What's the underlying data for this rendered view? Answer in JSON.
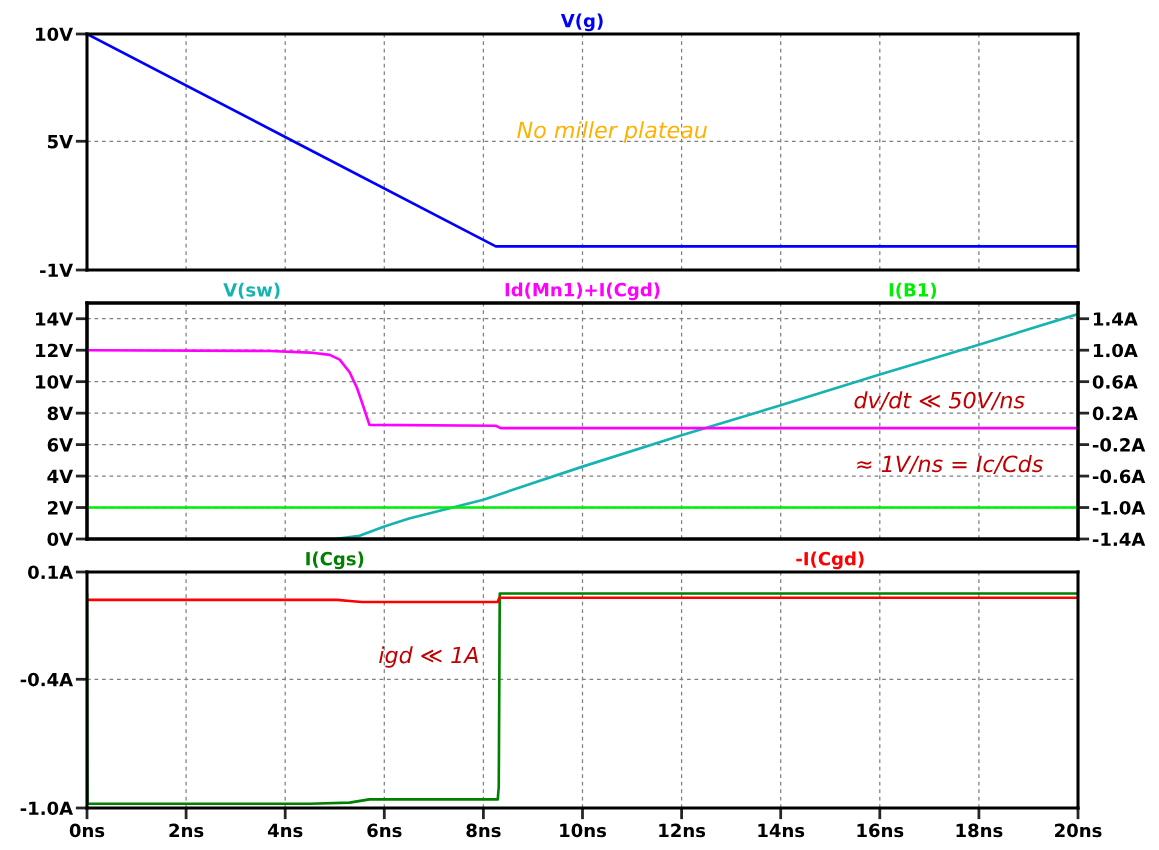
{
  "chart_data": [
    {
      "type": "line",
      "legend": "top",
      "grid": true,
      "tick_labels": "y",
      "series": [
        {
          "name": "V(g)",
          "color": "#0000ff",
          "x": [
            0,
            4,
            8.25,
            20
          ],
          "values": [
            10,
            5.2,
            0.1,
            0.1
          ]
        }
      ],
      "xlim": [
        0,
        20
      ],
      "xticks": [
        {
          "value": 0,
          "label": null
        },
        {
          "value": 2,
          "label": null
        },
        {
          "value": 4,
          "label": null
        },
        {
          "value": 6,
          "label": null
        },
        {
          "value": 8,
          "label": null
        },
        {
          "value": 10,
          "label": null
        },
        {
          "value": 12,
          "label": null
        },
        {
          "value": 14,
          "label": null
        },
        {
          "value": 16,
          "label": null
        },
        {
          "value": 18,
          "label": null
        },
        {
          "value": 20,
          "label": null
        }
      ],
      "ylim": [
        -1,
        10
      ],
      "yticks": [
        {
          "value": 10,
          "label": "10V"
        },
        {
          "value": 5,
          "label": "5V"
        },
        {
          "value": -1,
          "label": "-1V"
        }
      ],
      "annotations": [
        "No miller plateau"
      ]
    },
    {
      "type": "line",
      "legend": "top",
      "grid": true,
      "tick_labels": "y",
      "series": [
        {
          "name": "V(sw)",
          "color": "#17b3b3",
          "x": [
            0,
            5.0,
            5.5,
            6.0,
            6.5,
            7.0,
            7.5,
            8.0,
            10,
            12,
            14,
            16,
            18,
            20
          ],
          "values": [
            0,
            0,
            0.2,
            0.8,
            1.3,
            1.7,
            2.1,
            2.5,
            4.6,
            6.6,
            8.5,
            10.45,
            12.35,
            14.3
          ]
        },
        {
          "name": "Id(Mn1)+I(Cgd)",
          "color": "#ff00ff",
          "axis": "y2",
          "x": [
            0,
            3.7,
            4.5,
            4.9,
            5.1,
            5.3,
            5.45,
            5.58,
            5.7,
            8.25,
            8.35,
            20
          ],
          "values": [
            1.0,
            0.99,
            0.97,
            0.94,
            0.88,
            0.72,
            0.52,
            0.28,
            0.05,
            0.04,
            0.01,
            0.01
          ]
        },
        {
          "name": "I(B1)",
          "color": "#00ee00",
          "axis": "y2",
          "x": [
            0,
            20
          ],
          "values": [
            -1.0,
            -1.0
          ]
        }
      ],
      "xlim": [
        0,
        20
      ],
      "xticks": [
        {
          "value": 0,
          "label": null
        },
        {
          "value": 2,
          "label": null
        },
        {
          "value": 4,
          "label": null
        },
        {
          "value": 6,
          "label": null
        },
        {
          "value": 8,
          "label": null
        },
        {
          "value": 10,
          "label": null
        },
        {
          "value": 12,
          "label": null
        },
        {
          "value": 14,
          "label": null
        },
        {
          "value": 16,
          "label": null
        },
        {
          "value": 18,
          "label": null
        },
        {
          "value": 20,
          "label": null
        }
      ],
      "ylim": [
        0,
        15
      ],
      "yticks": [
        {
          "value": 0,
          "label": "0V"
        },
        {
          "value": 2,
          "label": "2V"
        },
        {
          "value": 4,
          "label": "4V"
        },
        {
          "value": 6,
          "label": "6V"
        },
        {
          "value": 8,
          "label": "8V"
        },
        {
          "value": 10,
          "label": "10V"
        },
        {
          "value": 12,
          "label": "12V"
        },
        {
          "value": 14,
          "label": "14V"
        }
      ],
      "y2lim": [
        -1.4,
        1.6
      ],
      "y2ticks": [
        {
          "value": -1.4,
          "label": "-1.4A"
        },
        {
          "value": -1.0,
          "label": "-1.0A"
        },
        {
          "value": -0.6,
          "label": "-0.6A"
        },
        {
          "value": -0.2,
          "label": "-0.2A"
        },
        {
          "value": 0.2,
          "label": "0.2A"
        },
        {
          "value": 0.6,
          "label": "0.6A"
        },
        {
          "value": 1.0,
          "label": "1.0A"
        },
        {
          "value": 1.4,
          "label": "1.4A"
        }
      ],
      "annotations": [
        "dv/dt ≪ 50V/ns",
        "≈ 1V/ns = Ic/Cds"
      ]
    },
    {
      "type": "line",
      "legend": "top",
      "grid": true,
      "series": [
        {
          "name": "I(Cgs)",
          "color": "#008000",
          "x": [
            0,
            0.01,
            4.5,
            5.3,
            5.7,
            8.29,
            8.31,
            8.33,
            20
          ],
          "values": [
            0.0,
            -0.98,
            -0.98,
            -0.975,
            -0.96,
            -0.96,
            -0.9,
            0.0,
            0.0
          ]
        },
        {
          "name": "-I(Cgd)",
          "color": "#ff0000",
          "x": [
            0,
            5.05,
            5.3,
            5.55,
            8.29,
            8.32,
            20
          ],
          "values": [
            -0.03,
            -0.03,
            -0.035,
            -0.04,
            -0.04,
            -0.02,
            -0.02
          ]
        }
      ],
      "xlim": [
        0,
        20
      ],
      "xticks": [
        {
          "value": 0,
          "label": "0ns"
        },
        {
          "value": 2,
          "label": "2ns"
        },
        {
          "value": 4,
          "label": "4ns"
        },
        {
          "value": 6,
          "label": "6ns"
        },
        {
          "value": 8,
          "label": "8ns"
        },
        {
          "value": 10,
          "label": "10ns"
        },
        {
          "value": 12,
          "label": "12ns"
        },
        {
          "value": 14,
          "label": "14ns"
        },
        {
          "value": 16,
          "label": "16ns"
        },
        {
          "value": 18,
          "label": "18ns"
        },
        {
          "value": 20,
          "label": "20ns"
        }
      ],
      "ylim": [
        -1.0,
        0.1
      ],
      "yticks": [
        {
          "value": 0.1,
          "label": "0.1A"
        },
        {
          "value": -0.4,
          "label": "-0.4A"
        },
        {
          "value": -1.0,
          "label": "-1.0A"
        }
      ],
      "annotations": [
        "igd ≪ 1A"
      ]
    }
  ]
}
